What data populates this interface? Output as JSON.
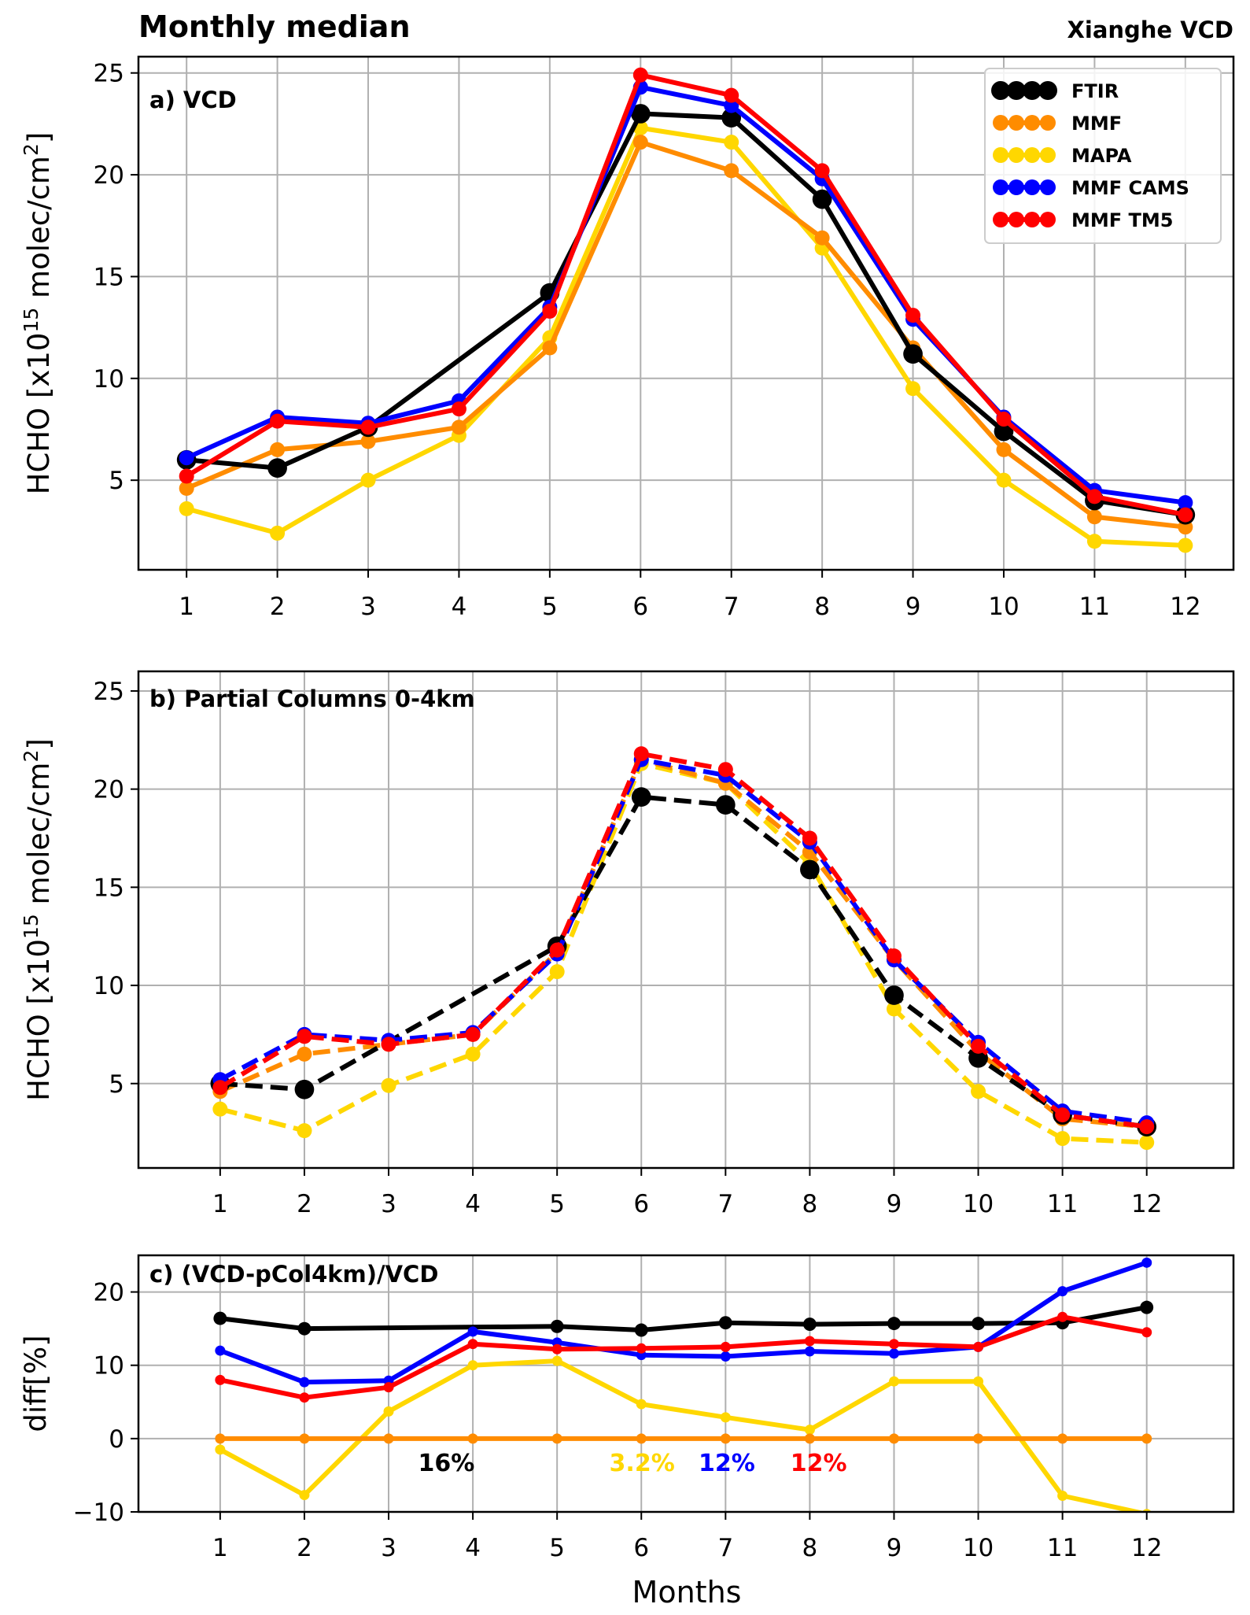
{
  "header": {
    "title": "Monthly median",
    "site": "Xianghe VCD"
  },
  "xlabel": "Months",
  "colors": {
    "FTIR": "#000000",
    "MMF": "#ff8c00",
    "MAPA": "#ffd700",
    "MMF CAMS": "#0000ff",
    "MMF TM5": "#ff0000"
  },
  "chart_data": [
    {
      "type": "line",
      "panel": "a) VCD",
      "ylabel": "HCHO [x10^15 molec/cm^2]",
      "ylabel_parts": {
        "pre": "HCHO [x10",
        "exp1": "15",
        "mid": " molec/cm",
        "exp2": "2",
        "post": "]"
      },
      "x": [
        1,
        2,
        3,
        4,
        5,
        6,
        7,
        8,
        9,
        10,
        11,
        12
      ],
      "ylim": [
        0.6,
        25.8
      ],
      "yticks": [
        5,
        10,
        15,
        20,
        25
      ],
      "linestyle": "solid",
      "legend": {
        "location": "top-right",
        "entries": [
          "FTIR",
          "MMF",
          "MAPA",
          "MMF CAMS",
          "MMF TM5"
        ]
      },
      "series": [
        {
          "name": "MAPA",
          "values": [
            3.6,
            2.4,
            5.0,
            7.2,
            12.0,
            22.3,
            21.6,
            16.4,
            9.5,
            5.0,
            2.0,
            1.8
          ]
        },
        {
          "name": "MMF",
          "values": [
            4.6,
            6.5,
            6.9,
            7.6,
            11.5,
            21.6,
            20.2,
            16.9,
            11.5,
            6.5,
            3.2,
            2.7
          ]
        },
        {
          "name": "FTIR",
          "values": [
            6.0,
            5.6,
            7.6,
            null,
            14.2,
            23.0,
            22.8,
            18.8,
            11.2,
            7.4,
            4.0,
            3.3
          ]
        },
        {
          "name": "MMF CAMS",
          "values": [
            6.1,
            8.1,
            7.8,
            8.9,
            13.5,
            24.3,
            23.4,
            19.8,
            12.9,
            8.1,
            4.5,
            3.9
          ]
        },
        {
          "name": "MMF TM5",
          "values": [
            5.2,
            7.9,
            7.6,
            8.5,
            13.3,
            24.9,
            23.9,
            20.2,
            13.1,
            8.0,
            4.2,
            3.3
          ]
        }
      ]
    },
    {
      "type": "line",
      "panel": "b) Partial Columns 0-4km",
      "ylabel": "HCHO [x10^15 molec/cm^2]",
      "ylabel_parts": {
        "pre": "HCHO [x10",
        "exp1": "15",
        "mid": " molec/cm",
        "exp2": "2",
        "post": "]"
      },
      "x": [
        1,
        2,
        3,
        4,
        5,
        6,
        7,
        8,
        9,
        10,
        11,
        12
      ],
      "ylim": [
        0.7,
        26.0
      ],
      "yticks": [
        5,
        10,
        15,
        20,
        25
      ],
      "linestyle": "dashed",
      "series": [
        {
          "name": "MAPA",
          "values": [
            3.7,
            2.6,
            4.9,
            6.5,
            10.7,
            21.3,
            20.3,
            16.2,
            8.8,
            4.6,
            2.2,
            2.0
          ]
        },
        {
          "name": "MMF",
          "values": [
            4.6,
            6.5,
            7.0,
            7.5,
            11.7,
            21.5,
            20.3,
            16.8,
            11.3,
            6.6,
            3.2,
            2.8
          ]
        },
        {
          "name": "FTIR",
          "values": [
            5.0,
            4.7,
            null,
            null,
            12.0,
            19.6,
            19.2,
            15.9,
            9.5,
            6.3,
            3.4,
            2.8
          ]
        },
        {
          "name": "MMF CAMS",
          "values": [
            5.2,
            7.5,
            7.2,
            7.6,
            11.6,
            21.5,
            20.7,
            17.3,
            11.3,
            7.1,
            3.6,
            3.0
          ]
        },
        {
          "name": "MMF TM5",
          "values": [
            4.8,
            7.4,
            7.0,
            7.5,
            11.8,
            21.8,
            21.0,
            17.5,
            11.5,
            6.9,
            3.4,
            2.8
          ]
        }
      ]
    },
    {
      "type": "line",
      "panel": "c) (VCD-pCol4km)/VCD",
      "ylabel": "diff[%]",
      "x": [
        1,
        2,
        3,
        4,
        5,
        6,
        7,
        8,
        9,
        10,
        11,
        12
      ],
      "ylim": [
        -10,
        25
      ],
      "yticks": [
        -10,
        0,
        10,
        20
      ],
      "ytick_labels": [
        "−10",
        "0",
        "10",
        "20"
      ],
      "linestyle": "solid",
      "series": [
        {
          "name": "MAPA",
          "values": [
            -1.5,
            -7.7,
            3.7,
            10.0,
            10.6,
            4.7,
            2.9,
            1.2,
            7.8,
            7.8,
            -7.8,
            -10.3
          ]
        },
        {
          "name": "MMF",
          "values": [
            0,
            0,
            0,
            0,
            0,
            0,
            0,
            0,
            0,
            0,
            0,
            0
          ]
        },
        {
          "name": "FTIR",
          "values": [
            16.4,
            15.0,
            null,
            null,
            15.3,
            14.8,
            15.8,
            15.6,
            15.7,
            15.7,
            15.8,
            17.9
          ]
        },
        {
          "name": "MMF CAMS",
          "values": [
            12.0,
            7.7,
            7.9,
            14.6,
            13.1,
            11.4,
            11.2,
            11.9,
            11.6,
            12.5,
            20.1,
            24.0
          ]
        },
        {
          "name": "MMF TM5",
          "values": [
            8.0,
            5.6,
            7.0,
            12.9,
            12.2,
            12.3,
            12.5,
            13.3,
            12.9,
            12.5,
            16.6,
            14.5
          ]
        }
      ],
      "annotations": [
        {
          "text": "16%",
          "series": "FTIR",
          "x": 3.35,
          "y": -4.4
        },
        {
          "text": "3.2%",
          "series": "MAPA",
          "x": 5.62,
          "y": -4.4
        },
        {
          "text": "12%",
          "series": "MMF CAMS",
          "x": 6.68,
          "y": -4.4
        },
        {
          "text": "12%",
          "series": "MMF TM5",
          "x": 7.77,
          "y": -4.4
        }
      ]
    }
  ]
}
